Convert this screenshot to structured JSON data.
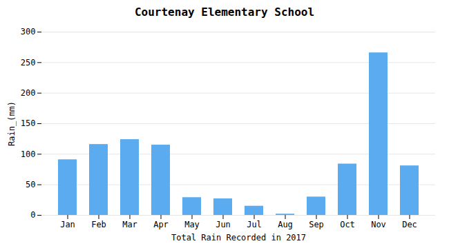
{
  "chart_data": {
    "type": "bar",
    "title": "Courtenay Elementary School",
    "xlabel": "Total Rain Recorded in 2017",
    "ylabel": "Rain_(mm)",
    "categories": [
      "Jan",
      "Feb",
      "Mar",
      "Apr",
      "May",
      "Jun",
      "Jul",
      "Aug",
      "Sep",
      "Oct",
      "Nov",
      "Dec"
    ],
    "values": [
      91,
      116,
      124,
      115,
      29,
      27,
      15,
      2,
      30,
      84,
      266,
      81
    ],
    "color": "#5aabf0",
    "ylim": [
      0,
      300
    ],
    "yticks": [
      0,
      50,
      100,
      150,
      200,
      250,
      300
    ],
    "grid": true
  }
}
